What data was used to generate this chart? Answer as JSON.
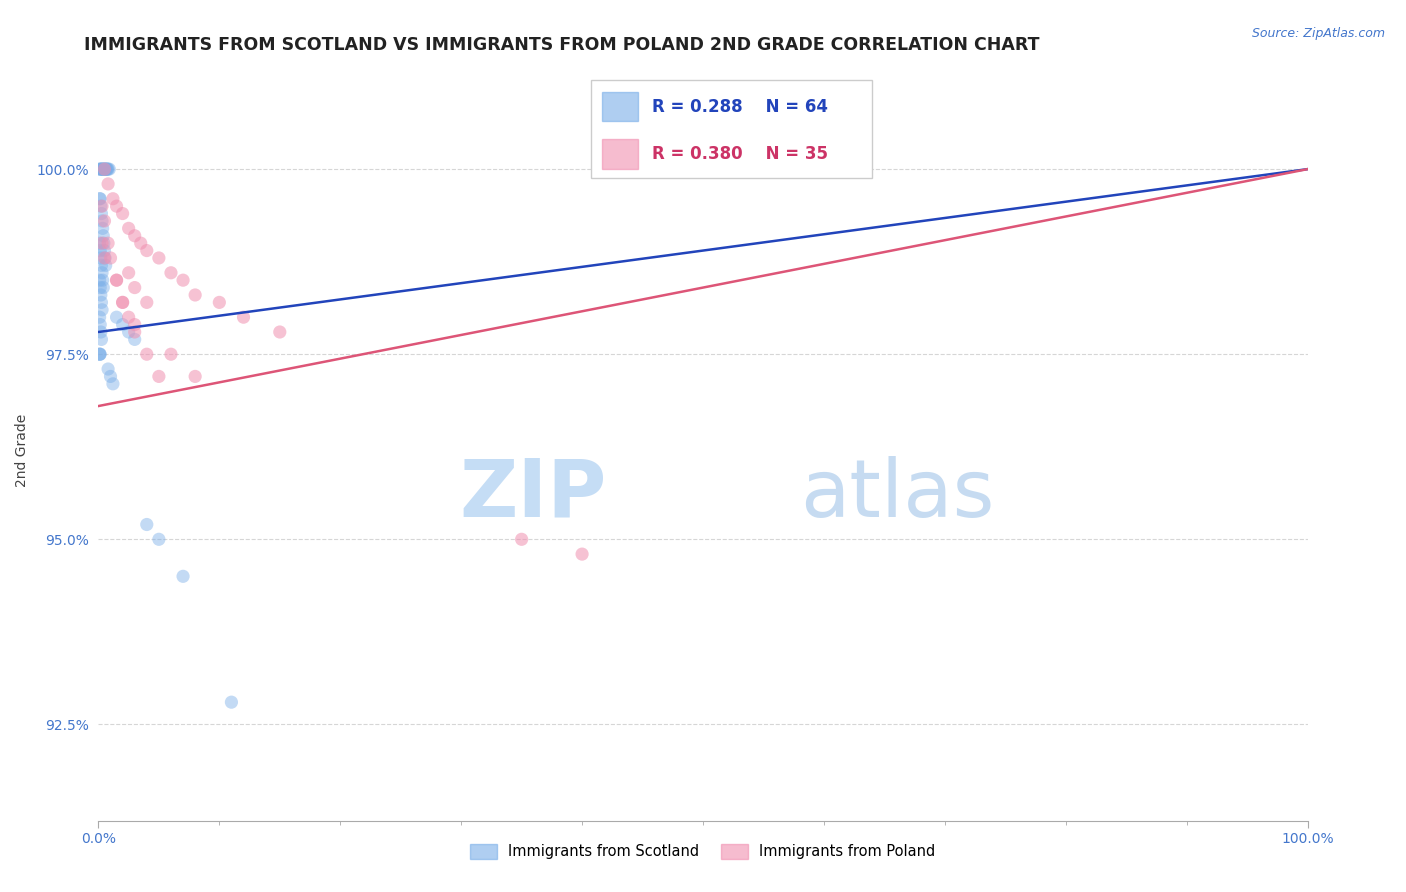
{
  "title": "IMMIGRANTS FROM SCOTLAND VS IMMIGRANTS FROM POLAND 2ND GRADE CORRELATION CHART",
  "source_text": "Source: ZipAtlas.com",
  "ylabel": "2nd Grade",
  "xlim": [
    0,
    100
  ],
  "ylim": [
    91.2,
    101.2
  ],
  "yticks": [
    92.5,
    95.0,
    97.5,
    100.0
  ],
  "xtick_labels": [
    "0.0%",
    "100.0%"
  ],
  "ytick_labels": [
    "92.5%",
    "95.0%",
    "97.5%",
    "100.0%"
  ],
  "legend_entries": [
    {
      "label": "Immigrants from Scotland",
      "color": "#a8c8f0"
    },
    {
      "label": "Immigrants from Poland",
      "color": "#f0a8c0"
    }
  ],
  "blue_scatter_x": [
    0.1,
    0.15,
    0.2,
    0.25,
    0.3,
    0.35,
    0.4,
    0.45,
    0.5,
    0.55,
    0.6,
    0.65,
    0.7,
    0.75,
    0.8,
    0.9,
    0.1,
    0.15,
    0.2,
    0.25,
    0.3,
    0.35,
    0.4,
    0.45,
    0.5,
    0.55,
    0.6,
    0.1,
    0.15,
    0.2,
    0.25,
    0.3,
    0.35,
    0.4,
    0.1,
    0.15,
    0.2,
    0.25,
    0.3,
    0.1,
    0.15,
    0.2,
    0.25,
    0.1,
    0.12,
    0.14,
    1.5,
    2.0,
    2.5,
    3.0,
    0.8,
    1.0,
    1.2,
    4.0,
    5.0,
    7.0,
    11.0
  ],
  "blue_scatter_y": [
    100.0,
    100.0,
    100.0,
    100.0,
    100.0,
    100.0,
    100.0,
    100.0,
    100.0,
    100.0,
    100.0,
    100.0,
    100.0,
    100.0,
    100.0,
    100.0,
    99.6,
    99.6,
    99.5,
    99.4,
    99.3,
    99.2,
    99.1,
    99.0,
    98.9,
    98.8,
    98.7,
    99.0,
    98.9,
    98.8,
    98.7,
    98.6,
    98.5,
    98.4,
    98.5,
    98.4,
    98.3,
    98.2,
    98.1,
    98.0,
    97.9,
    97.8,
    97.7,
    97.5,
    97.5,
    97.5,
    98.0,
    97.9,
    97.8,
    97.7,
    97.3,
    97.2,
    97.1,
    95.2,
    95.0,
    94.5,
    92.8
  ],
  "pink_scatter_x": [
    0.5,
    0.8,
    1.2,
    1.5,
    2.0,
    2.5,
    3.0,
    3.5,
    4.0,
    5.0,
    6.0,
    7.0,
    8.0,
    10.0,
    12.0,
    15.0,
    0.3,
    0.5,
    0.8,
    1.0,
    1.5,
    2.0,
    3.0,
    1.5,
    2.0,
    2.5,
    3.0,
    4.0,
    5.0,
    2.5,
    3.0,
    4.0,
    0.3,
    0.5,
    6.0,
    8.0,
    35.0,
    40.0
  ],
  "pink_scatter_y": [
    100.0,
    99.8,
    99.6,
    99.5,
    99.4,
    99.2,
    99.1,
    99.0,
    98.9,
    98.8,
    98.6,
    98.5,
    98.3,
    98.2,
    98.0,
    97.8,
    99.5,
    99.3,
    99.0,
    98.8,
    98.5,
    98.2,
    97.9,
    98.5,
    98.2,
    98.0,
    97.8,
    97.5,
    97.2,
    98.6,
    98.4,
    98.2,
    99.0,
    98.8,
    97.5,
    97.2,
    95.0,
    94.8
  ],
  "blue_line_x": [
    0,
    100
  ],
  "blue_line_y": [
    97.8,
    100.0
  ],
  "pink_line_x": [
    0,
    100
  ],
  "pink_line_y": [
    96.8,
    100.0
  ],
  "blue_line_color": "#2244bb",
  "pink_line_color": "#dd5577",
  "scatter_blue_color": "#7aaee8",
  "scatter_pink_color": "#f090b0",
  "background_color": "#ffffff",
  "grid_color": "#cccccc",
  "title_fontsize": 12.5,
  "axis_label_fontsize": 10,
  "tick_fontsize": 10,
  "source_fontsize": 9,
  "source_color": "#4477cc",
  "watermark_zip_color": "#c5ddf5",
  "watermark_atlas_color": "#c0d8f0"
}
